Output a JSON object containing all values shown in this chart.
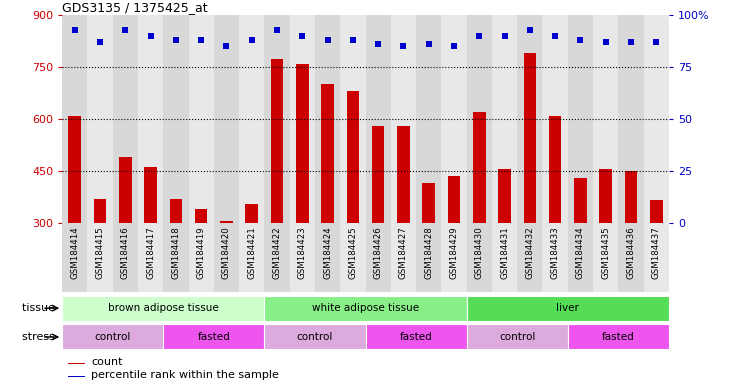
{
  "title": "GDS3135 / 1375425_at",
  "samples": [
    "GSM184414",
    "GSM184415",
    "GSM184416",
    "GSM184417",
    "GSM184418",
    "GSM184419",
    "GSM184420",
    "GSM184421",
    "GSM184422",
    "GSM184423",
    "GSM184424",
    "GSM184425",
    "GSM184426",
    "GSM184427",
    "GSM184428",
    "GSM184429",
    "GSM184430",
    "GSM184431",
    "GSM184432",
    "GSM184433",
    "GSM184434",
    "GSM184435",
    "GSM184436",
    "GSM184437"
  ],
  "counts": [
    610,
    370,
    490,
    460,
    370,
    340,
    305,
    355,
    775,
    760,
    700,
    680,
    580,
    580,
    415,
    435,
    620,
    455,
    790,
    610,
    430,
    455,
    450,
    365
  ],
  "percentile_ranks": [
    93,
    87,
    93,
    90,
    88,
    88,
    85,
    88,
    93,
    90,
    88,
    88,
    86,
    85,
    86,
    85,
    90,
    90,
    93,
    90,
    88,
    87,
    87,
    87
  ],
  "bar_color": "#cc0000",
  "dot_color": "#0000cc",
  "ymin": 300,
  "ymax": 900,
  "yticks_left": [
    300,
    450,
    600,
    750,
    900
  ],
  "yticks_right": [
    0,
    25,
    50,
    75,
    100
  ],
  "tissue_groups": [
    {
      "label": "brown adipose tissue",
      "start": 0,
      "end": 7,
      "color": "#ccffcc"
    },
    {
      "label": "white adipose tissue",
      "start": 8,
      "end": 15,
      "color": "#88ee88"
    },
    {
      "label": "liver",
      "start": 16,
      "end": 23,
      "color": "#55dd55"
    }
  ],
  "stress_groups": [
    {
      "label": "control",
      "start": 0,
      "end": 3,
      "color": "#ddaadd"
    },
    {
      "label": "fasted",
      "start": 4,
      "end": 7,
      "color": "#ee55ee"
    },
    {
      "label": "control",
      "start": 8,
      "end": 11,
      "color": "#ddaadd"
    },
    {
      "label": "fasted",
      "start": 12,
      "end": 15,
      "color": "#ee55ee"
    },
    {
      "label": "control",
      "start": 16,
      "end": 19,
      "color": "#ddaadd"
    },
    {
      "label": "fasted",
      "start": 20,
      "end": 23,
      "color": "#ee55ee"
    }
  ],
  "legend_count_label": "count",
  "legend_percentile_label": "percentile rank within the sample",
  "tissue_label": "tissue",
  "stress_label": "stress",
  "bg_color": "#ffffff",
  "axis_color_left": "#cc0000",
  "axis_color_right": "#0000cc",
  "col_bg_even": "#d8d8d8",
  "col_bg_odd": "#e8e8e8"
}
